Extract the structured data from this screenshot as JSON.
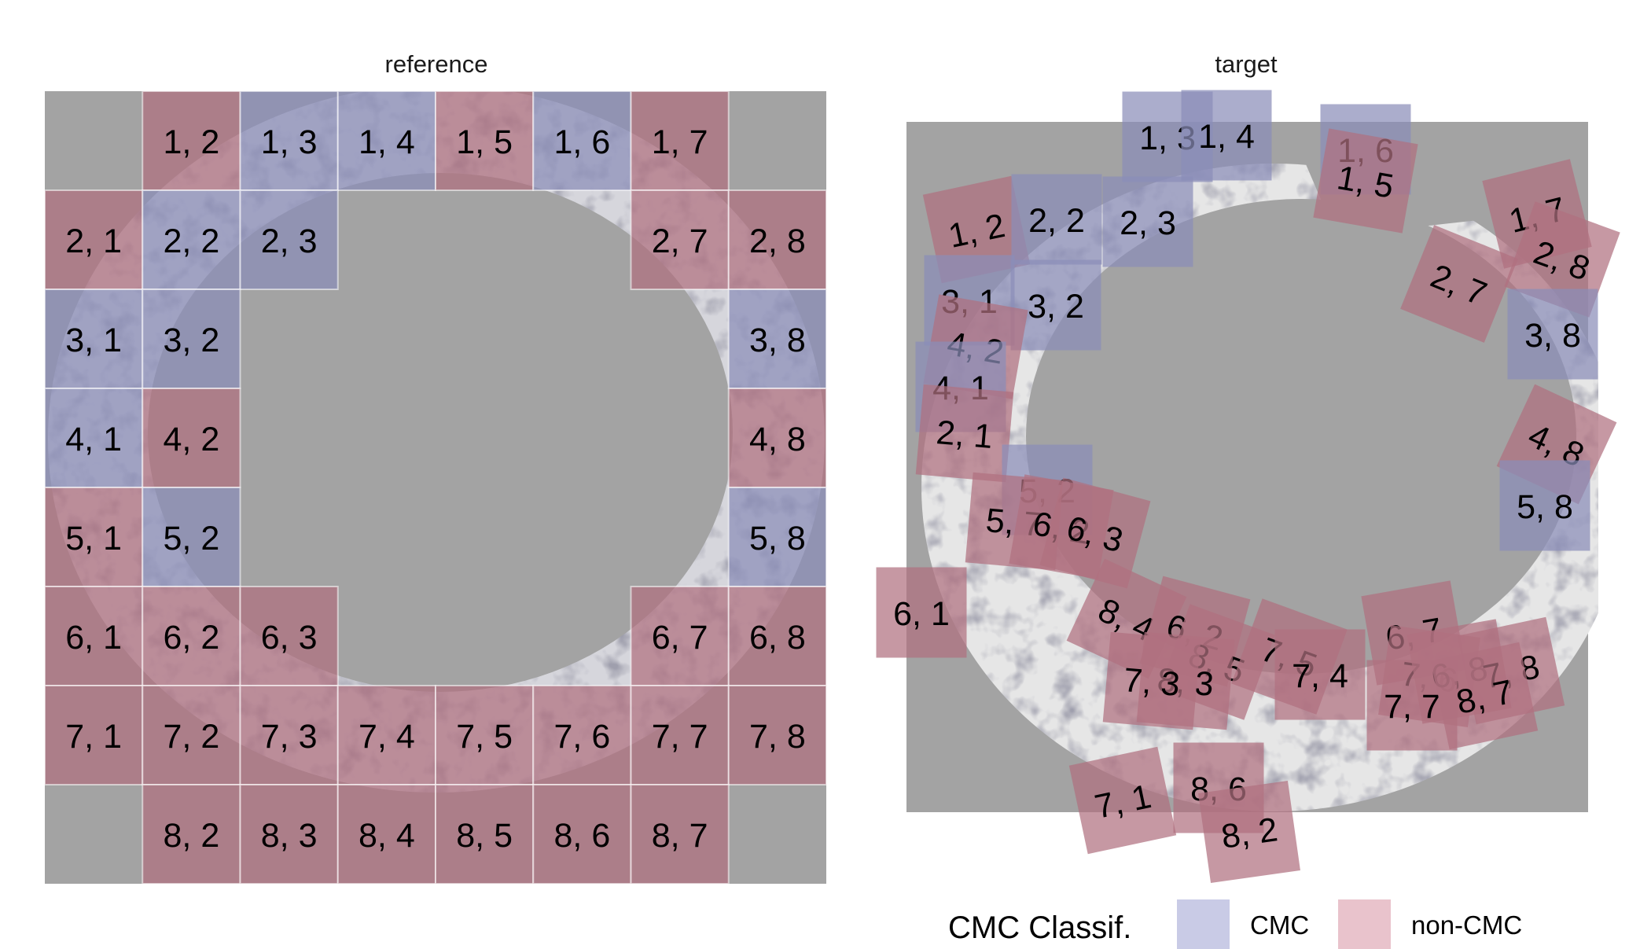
{
  "panels": {
    "reference": {
      "title": "reference"
    },
    "target": {
      "title": "target"
    }
  },
  "legend": {
    "title": "CMC Classif.",
    "items": [
      {
        "key": "CMC",
        "label": "CMC",
        "color": "#c9cbe6"
      },
      {
        "key": "non-CMC",
        "label": "non-CMC",
        "color": "#e9c3cc"
      }
    ]
  },
  "colors": {
    "background": "#a3a3a3",
    "cmc_fill": "#8b8db8",
    "noncmc_fill": "#b07080",
    "scan_light": "#d8d8d8",
    "scan_dark": "#4a4a5a"
  },
  "reference_cells": [
    {
      "label": "1, 2",
      "cls": "non-CMC"
    },
    {
      "label": "1, 3",
      "cls": "CMC"
    },
    {
      "label": "1, 4",
      "cls": "CMC"
    },
    {
      "label": "1, 5",
      "cls": "non-CMC"
    },
    {
      "label": "1, 6",
      "cls": "CMC"
    },
    {
      "label": "1, 7",
      "cls": "non-CMC"
    },
    {
      "label": "2, 1",
      "cls": "non-CMC"
    },
    {
      "label": "2, 2",
      "cls": "CMC"
    },
    {
      "label": "2, 3",
      "cls": "CMC"
    },
    {
      "label": "2, 7",
      "cls": "non-CMC"
    },
    {
      "label": "2, 8",
      "cls": "non-CMC"
    },
    {
      "label": "3, 1",
      "cls": "CMC"
    },
    {
      "label": "3, 2",
      "cls": "CMC"
    },
    {
      "label": "3, 8",
      "cls": "CMC"
    },
    {
      "label": "4, 1",
      "cls": "CMC"
    },
    {
      "label": "4, 2",
      "cls": "non-CMC"
    },
    {
      "label": "4, 8",
      "cls": "non-CMC"
    },
    {
      "label": "5, 1",
      "cls": "non-CMC"
    },
    {
      "label": "5, 2",
      "cls": "CMC"
    },
    {
      "label": "5, 8",
      "cls": "CMC"
    },
    {
      "label": "6, 1",
      "cls": "non-CMC"
    },
    {
      "label": "6, 2",
      "cls": "non-CMC"
    },
    {
      "label": "6, 3",
      "cls": "non-CMC"
    },
    {
      "label": "6, 7",
      "cls": "non-CMC"
    },
    {
      "label": "6, 8",
      "cls": "non-CMC"
    },
    {
      "label": "7, 1",
      "cls": "non-CMC"
    },
    {
      "label": "7, 2",
      "cls": "non-CMC"
    },
    {
      "label": "7, 3",
      "cls": "non-CMC"
    },
    {
      "label": "7, 4",
      "cls": "non-CMC"
    },
    {
      "label": "7, 5",
      "cls": "non-CMC"
    },
    {
      "label": "7, 6",
      "cls": "non-CMC"
    },
    {
      "label": "7, 7",
      "cls": "non-CMC"
    },
    {
      "label": "7, 8",
      "cls": "non-CMC"
    },
    {
      "label": "8, 2",
      "cls": "non-CMC"
    },
    {
      "label": "8, 3",
      "cls": "non-CMC"
    },
    {
      "label": "8, 4",
      "cls": "non-CMC"
    },
    {
      "label": "8, 5",
      "cls": "non-CMC"
    },
    {
      "label": "8, 6",
      "cls": "non-CMC"
    },
    {
      "label": "8, 7",
      "cls": "non-CMC"
    }
  ],
  "target_cells": [
    {
      "label": "1, 3",
      "cls": "CMC"
    },
    {
      "label": "1, 4",
      "cls": "CMC"
    },
    {
      "label": "1, 6",
      "cls": "CMC"
    },
    {
      "label": "1, 5",
      "cls": "non-CMC"
    },
    {
      "label": "1, 2",
      "cls": "non-CMC"
    },
    {
      "label": "2, 2",
      "cls": "CMC"
    },
    {
      "label": "2, 3",
      "cls": "CMC"
    },
    {
      "label": "1, 7",
      "cls": "non-CMC"
    },
    {
      "label": "2, 8",
      "cls": "non-CMC"
    },
    {
      "label": "2, 7",
      "cls": "non-CMC"
    },
    {
      "label": "3, 1",
      "cls": "CMC"
    },
    {
      "label": "3, 2",
      "cls": "CMC"
    },
    {
      "label": "3, 8",
      "cls": "CMC"
    },
    {
      "label": "4, 2",
      "cls": "non-CMC"
    },
    {
      "label": "4, 1",
      "cls": "CMC"
    },
    {
      "label": "2, 1",
      "cls": "non-CMC"
    },
    {
      "label": "4, 8",
      "cls": "non-CMC"
    },
    {
      "label": "5, 2",
      "cls": "CMC"
    },
    {
      "label": "5, 8",
      "cls": "CMC"
    },
    {
      "label": "5, 7",
      "cls": "non-CMC"
    },
    {
      "label": "6, 2",
      "cls": "non-CMC"
    },
    {
      "label": "6, 3",
      "cls": "non-CMC"
    },
    {
      "label": "6, 1",
      "cls": "non-CMC"
    },
    {
      "label": "8, 4",
      "cls": "non-CMC"
    },
    {
      "label": "6, 2",
      "cls": "non-CMC"
    },
    {
      "label": "8, 5",
      "cls": "non-CMC"
    },
    {
      "label": "8, 3",
      "cls": "non-CMC"
    },
    {
      "label": "7, 3",
      "cls": "non-CMC"
    },
    {
      "label": "7, 5",
      "cls": "non-CMC"
    },
    {
      "label": "7, 4",
      "cls": "non-CMC"
    },
    {
      "label": "6, 7",
      "cls": "non-CMC"
    },
    {
      "label": "7, 6",
      "cls": "non-CMC"
    },
    {
      "label": "6, 8",
      "cls": "non-CMC"
    },
    {
      "label": "7, 8",
      "cls": "non-CMC"
    },
    {
      "label": "7, 7",
      "cls": "non-CMC"
    },
    {
      "label": "8, 7",
      "cls": "non-CMC"
    },
    {
      "label": "7, 1",
      "cls": "non-CMC"
    },
    {
      "label": "8, 6",
      "cls": "non-CMC"
    },
    {
      "label": "8, 2",
      "cls": "non-CMC"
    }
  ]
}
